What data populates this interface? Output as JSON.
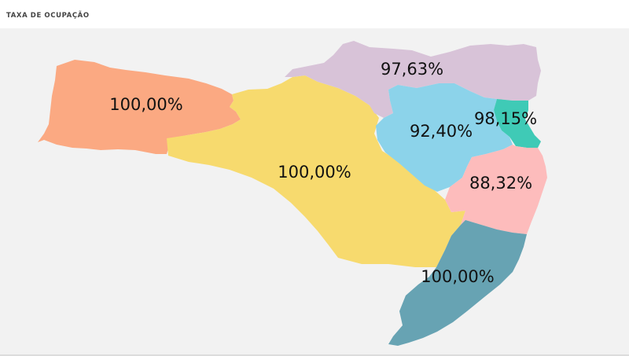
{
  "header": {
    "title": "TAXA DE OCUPAÇÃO"
  },
  "regions": [
    {
      "id": "oeste",
      "value": "100,00%",
      "color": "#fba982"
    },
    {
      "id": "meio-oeste",
      "value": "100,00%",
      "color": "#f7da6e"
    },
    {
      "id": "norte",
      "value": "97,63%",
      "color": "#d8c3d8"
    },
    {
      "id": "vale",
      "value": "92,40%",
      "color": "#8cd3ea"
    },
    {
      "id": "grande-fpolis",
      "value": "98,15%",
      "color": "#3fcab6"
    },
    {
      "id": "sul-serra",
      "value": "88,32%",
      "color": "#fdbcbc"
    },
    {
      "id": "sul",
      "value": "100,00%",
      "color": "#67a3b3"
    }
  ]
}
